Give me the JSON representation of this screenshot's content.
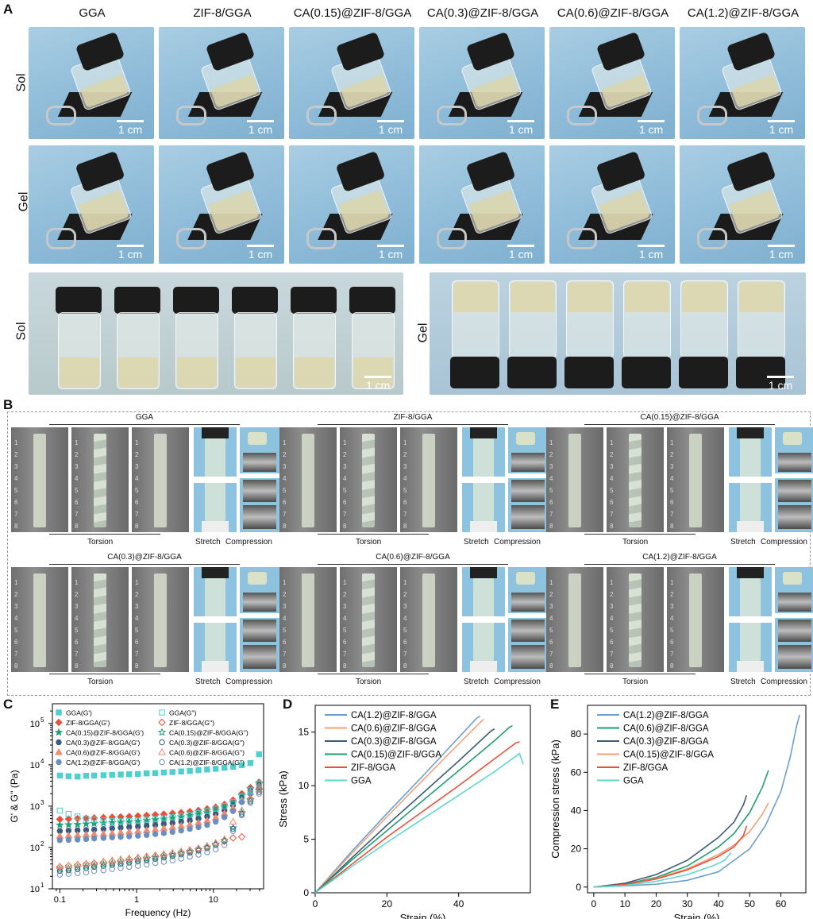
{
  "panel_a": {
    "letter": "A",
    "columns": [
      "GGA",
      "ZIF-8/GGA",
      "CA(0.15)@ZIF-8/GGA",
      "CA(0.3)@ZIF-8/GGA",
      "CA(0.6)@ZIF-8/GGA",
      "CA(1.2)@ZIF-8/GGA"
    ],
    "rows": [
      "Sol",
      "Gel"
    ],
    "bottom_left_label": "Sol",
    "bottom_right_label": "Gel",
    "scale_bar": "1 cm"
  },
  "panel_b": {
    "letter": "B",
    "samples": [
      "GGA",
      "ZIF-8/GGA",
      "CA(0.15)@ZIF-8/GGA",
      "CA(0.3)@ZIF-8/GGA",
      "CA(0.6)@ZIF-8/GGA",
      "CA(1.2)@ZIF-8/GGA"
    ],
    "torsion": "Torsion",
    "stretch": "Stretch",
    "compression": "Compression"
  },
  "chart_data": [
    {
      "panel": "C",
      "type": "scatter",
      "xlabel": "Frequency (Hz)",
      "ylabel": "G' & G'' (Pa)",
      "xscale": "log",
      "yscale": "log",
      "xlim": [
        0.08,
        45
      ],
      "ylim": [
        10,
        300000
      ],
      "xticks": [
        "0.1",
        "1",
        "10"
      ],
      "yticks": [
        "10",
        "10",
        "10",
        "10",
        "10"
      ],
      "ytick_exponents": [
        "1",
        "2",
        "3",
        "4",
        "5"
      ],
      "legend_position": "top-left",
      "x": [
        0.1,
        0.13,
        0.17,
        0.22,
        0.28,
        0.37,
        0.48,
        0.62,
        0.8,
        1.04,
        1.35,
        1.75,
        2.26,
        2.93,
        3.8,
        4.93,
        6.39,
        8.28,
        10.7,
        13.9,
        18.0,
        23.4,
        30.3,
        39.3
      ],
      "series": [
        {
          "name": "GGA(G')",
          "color": "#4fcfcf",
          "marker": "square",
          "filled": true,
          "values": [
            5500,
            5300,
            5200,
            5400,
            5500,
            5600,
            5700,
            5800,
            5900,
            6000,
            6200,
            6300,
            6500,
            6700,
            6900,
            7100,
            7400,
            7700,
            8000,
            8500,
            9000,
            9800,
            11000,
            18000
          ]
        },
        {
          "name": "ZIF-8/GGA(G')",
          "color": "#e8503a",
          "marker": "diamond",
          "filled": true,
          "values": [
            480,
            490,
            500,
            510,
            520,
            530,
            540,
            550,
            560,
            580,
            600,
            620,
            640,
            670,
            700,
            740,
            790,
            860,
            950,
            1100,
            1400,
            2000,
            2800,
            3800
          ]
        },
        {
          "name": "CA(0.15)@ZIF-8/GGA(G')",
          "color": "#1fa27a",
          "marker": "star",
          "filled": true,
          "values": [
            350,
            355,
            360,
            370,
            380,
            390,
            400,
            410,
            420,
            430,
            450,
            470,
            490,
            520,
            550,
            590,
            640,
            700,
            800,
            950,
            1200,
            1800,
            2600,
            3500
          ]
        },
        {
          "name": "CA(0.3)@ZIF-8/GGA(G')",
          "color": "#3d5a80",
          "marker": "circle",
          "filled": true,
          "values": [
            250,
            255,
            260,
            265,
            270,
            280,
            290,
            300,
            310,
            320,
            335,
            350,
            370,
            390,
            420,
            450,
            500,
            560,
            650,
            800,
            1050,
            1600,
            2400,
            3200
          ]
        },
        {
          "name": "CA(0.6)@ZIF-8/GGA(G')",
          "color": "#f08a70",
          "marker": "triangle",
          "filled": true,
          "values": [
            190,
            195,
            200,
            205,
            210,
            215,
            220,
            230,
            240,
            250,
            260,
            275,
            290,
            310,
            335,
            360,
            400,
            450,
            530,
            660,
            900,
            1400,
            2200,
            3000
          ]
        },
        {
          "name": "CA(1.2)@ZIF-8/GGA(G')",
          "color": "#6a8fbf",
          "marker": "circle",
          "filled": true,
          "values": [
            150,
            152,
            155,
            160,
            165,
            170,
            175,
            180,
            185,
            192,
            200,
            210,
            222,
            238,
            256,
            280,
            310,
            350,
            420,
            540,
            760,
            1250,
            2000,
            2800
          ]
        },
        {
          "name": "GGA(G'')",
          "color": "#4fcfcf",
          "marker": "square",
          "filled": false,
          "values": [
            780,
            650,
            560,
            500,
            470,
            450,
            440,
            430,
            440,
            450,
            470,
            490,
            510,
            540,
            580,
            620,
            680,
            760,
            870,
            1000,
            1250,
            1700,
            2400,
            3500
          ]
        },
        {
          "name": "ZIF-8/GGA(G'')",
          "color": "#e8503a",
          "marker": "diamond",
          "filled": false,
          "values": [
            34,
            36,
            38,
            40,
            42,
            44,
            46,
            49,
            52,
            55,
            58,
            62,
            66,
            71,
            77,
            84,
            93,
            105,
            120,
            140,
            170,
            180,
            1500,
            2600
          ]
        },
        {
          "name": "CA(0.15)@ZIF-8/GGA(G'')",
          "color": "#1fa27a",
          "marker": "star",
          "filled": false,
          "values": [
            30,
            31,
            33,
            35,
            37,
            39,
            41,
            44,
            47,
            50,
            53,
            57,
            61,
            66,
            72,
            79,
            88,
            100,
            120,
            150,
            300,
            700,
            1400,
            2400
          ]
        },
        {
          "name": "CA(0.3)@ZIF-8/GGA(G'')",
          "color": "#3d5a80",
          "marker": "circle",
          "filled": false,
          "values": [
            27,
            28,
            30,
            32,
            34,
            36,
            38,
            40,
            43,
            46,
            49,
            53,
            57,
            62,
            68,
            75,
            84,
            96,
            115,
            145,
            280,
            650,
            1300,
            2200
          ]
        },
        {
          "name": "CA(0.6)@ZIF-8/GGA(G'')",
          "color": "#f08a70",
          "marker": "triangle",
          "filled": false,
          "values": [
            35,
            37,
            39,
            41,
            43,
            46,
            49,
            52,
            55,
            58,
            62,
            66,
            70,
            75,
            81,
            88,
            97,
            110,
            130,
            160,
            420,
            800,
            1500,
            2500
          ]
        },
        {
          "name": "CA(1.2)@ZIF-8/GGA(G'')",
          "color": "#6a8fbf",
          "marker": "circle",
          "filled": false,
          "values": [
            22,
            23,
            24,
            25,
            27,
            28,
            30,
            32,
            34,
            36,
            39,
            42,
            45,
            49,
            54,
            60,
            67,
            77,
            90,
            115,
            250,
            600,
            1200,
            2000
          ]
        }
      ]
    },
    {
      "panel": "D",
      "type": "line",
      "xlabel": "Strain (%)",
      "ylabel": "Stress (kPa)",
      "xlim": [
        0,
        60
      ],
      "ylim": [
        0,
        17.5
      ],
      "xticks": [
        "0",
        "20",
        "40"
      ],
      "yticks": [
        "0",
        "5",
        "10",
        "15"
      ],
      "legend_position": "top-left",
      "series": [
        {
          "name": "CA(1.2)@ZIF-8/GGA",
          "color": "#6aa0c8",
          "x": [
            0,
            5,
            10,
            20,
            30,
            40,
            45,
            46
          ],
          "y": [
            0,
            1.9,
            3.8,
            7.4,
            10.9,
            14.5,
            16.3,
            16.5
          ]
        },
        {
          "name": "CA(0.6)@ZIF-8/GGA",
          "color": "#f5a07a",
          "x": [
            0,
            5,
            10,
            20,
            30,
            40,
            46,
            47
          ],
          "y": [
            0,
            1.8,
            3.6,
            7.1,
            10.5,
            13.9,
            15.9,
            16.2
          ]
        },
        {
          "name": "CA(0.3)@ZIF-8/GGA",
          "color": "#3d5a78",
          "x": [
            0,
            5,
            10,
            20,
            30,
            40,
            49,
            50
          ],
          "y": [
            0,
            1.6,
            3.2,
            6.3,
            9.3,
            12.3,
            15.1,
            15.3
          ]
        },
        {
          "name": "CA(0.15)@ZIF-8/GGA",
          "color": "#1f9e6e",
          "x": [
            0,
            5,
            10,
            20,
            30,
            40,
            50,
            54,
            55
          ],
          "y": [
            0,
            1.5,
            3.0,
            5.8,
            8.6,
            11.4,
            14.2,
            15.4,
            15.6
          ]
        },
        {
          "name": "ZIF-8/GGA",
          "color": "#e8503a",
          "x": [
            0,
            5,
            10,
            20,
            30,
            40,
            50,
            56,
            57
          ],
          "y": [
            0,
            1.3,
            2.6,
            5.2,
            7.6,
            10.0,
            12.5,
            14.0,
            14.1
          ]
        },
        {
          "name": "GGA",
          "color": "#5fd6d0",
          "x": [
            0,
            5,
            10,
            20,
            30,
            40,
            50,
            57,
            58
          ],
          "y": [
            0,
            1.2,
            2.4,
            4.7,
            6.9,
            9.1,
            11.3,
            13.0,
            12.0
          ]
        }
      ]
    },
    {
      "panel": "E",
      "type": "line",
      "xlabel": "Strain (%)",
      "ylabel": "Compression stress (kPa)",
      "xlim": [
        -2,
        68
      ],
      "ylim": [
        -3,
        95
      ],
      "xticks": [
        "0",
        "10",
        "20",
        "30",
        "40",
        "50",
        "60"
      ],
      "yticks": [
        "0",
        "20",
        "40",
        "60",
        "80"
      ],
      "legend_position": "top-left",
      "series": [
        {
          "name": "CA(1.2)@ZIF-8/GGA",
          "color": "#6aa0c8",
          "x": [
            0,
            10,
            20,
            30,
            40,
            50,
            55,
            60,
            63,
            65,
            66
          ],
          "y": [
            0,
            0.6,
            1.5,
            3.5,
            8,
            20,
            32,
            50,
            68,
            84,
            90
          ]
        },
        {
          "name": "CA(0.6)@ZIF-8/GGA",
          "color": "#1f9e6e",
          "x": [
            0,
            10,
            20,
            30,
            40,
            45,
            50,
            54,
            56
          ],
          "y": [
            0,
            1.5,
            5,
            11,
            21,
            28,
            39,
            52,
            61
          ]
        },
        {
          "name": "CA(0.3)@ZIF-8/GGA",
          "color": "#3d5a78",
          "x": [
            0,
            10,
            20,
            30,
            40,
            45,
            48,
            49
          ],
          "y": [
            0,
            2,
            6.5,
            14,
            26,
            34,
            43,
            48
          ]
        },
        {
          "name": "CA(0.15)@ZIF-8/GGA",
          "color": "#f5a07a",
          "x": [
            0,
            10,
            20,
            30,
            40,
            45,
            50,
            54,
            56
          ],
          "y": [
            0,
            1.2,
            4.5,
            9.5,
            17,
            22,
            29,
            38,
            44
          ]
        },
        {
          "name": "ZIF-8/GGA",
          "color": "#e8503a",
          "x": [
            0,
            10,
            20,
            30,
            40,
            45,
            48,
            49
          ],
          "y": [
            0,
            1.3,
            4.2,
            9,
            16,
            21,
            27,
            32
          ]
        },
        {
          "name": "GGA",
          "color": "#5fd6d0",
          "x": [
            0,
            10,
            20,
            30,
            38,
            42,
            44
          ],
          "y": [
            0,
            0.8,
            3,
            6.5,
            11,
            14,
            18
          ]
        }
      ]
    }
  ]
}
